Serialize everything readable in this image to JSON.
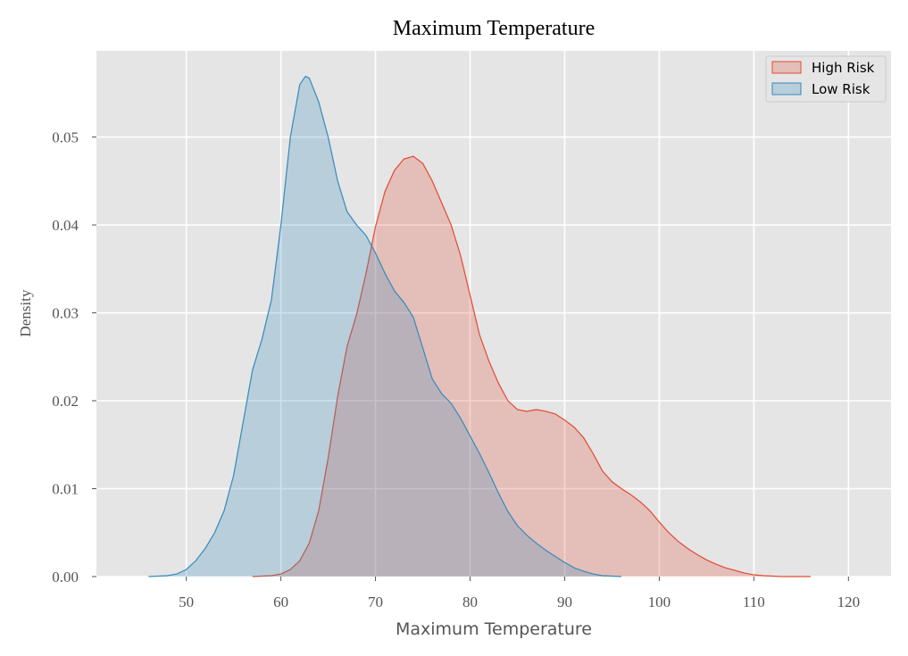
{
  "chart_data": {
    "type": "area",
    "title": "Maximum Temperature",
    "xlabel": "Maximum Temperature",
    "ylabel": "Density",
    "xlim": [
      40.5,
      124.5
    ],
    "ylim": [
      0,
      0.0598
    ],
    "xticks": [
      50,
      60,
      70,
      80,
      90,
      100,
      110,
      120
    ],
    "yticks": [
      0.0,
      0.01,
      0.02,
      0.03,
      0.04,
      0.05
    ],
    "ytick_labels": [
      "0.00",
      "0.01",
      "0.02",
      "0.03",
      "0.04",
      "0.05"
    ],
    "grid": true,
    "legend_position": "top-right",
    "series": [
      {
        "name": "High Risk",
        "color": "#e24a33",
        "points": [
          [
            57,
            0.0
          ],
          [
            59,
            0.0001
          ],
          [
            60,
            0.0003
          ],
          [
            61,
            0.0008
          ],
          [
            62,
            0.0018
          ],
          [
            63,
            0.0038
          ],
          [
            64,
            0.0075
          ],
          [
            65,
            0.0135
          ],
          [
            66,
            0.0205
          ],
          [
            67,
            0.0262
          ],
          [
            68,
            0.0298
          ],
          [
            69,
            0.0345
          ],
          [
            70,
            0.0398
          ],
          [
            71,
            0.0438
          ],
          [
            72,
            0.0462
          ],
          [
            73,
            0.0475
          ],
          [
            74,
            0.0478
          ],
          [
            75,
            0.047
          ],
          [
            76,
            0.045
          ],
          [
            77,
            0.0425
          ],
          [
            78,
            0.04
          ],
          [
            79,
            0.0365
          ],
          [
            80,
            0.032
          ],
          [
            81,
            0.0275
          ],
          [
            82,
            0.0245
          ],
          [
            83,
            0.022
          ],
          [
            84,
            0.02
          ],
          [
            85,
            0.019
          ],
          [
            86,
            0.0188
          ],
          [
            87,
            0.019
          ],
          [
            88,
            0.0188
          ],
          [
            89,
            0.0185
          ],
          [
            90,
            0.0178
          ],
          [
            91,
            0.017
          ],
          [
            92,
            0.0158
          ],
          [
            93,
            0.014
          ],
          [
            94,
            0.012
          ],
          [
            95,
            0.0108
          ],
          [
            96,
            0.01
          ],
          [
            97,
            0.0093
          ],
          [
            98,
            0.0085
          ],
          [
            99,
            0.0075
          ],
          [
            100,
            0.0062
          ],
          [
            101,
            0.005
          ],
          [
            102,
            0.004
          ],
          [
            103,
            0.0032
          ],
          [
            104,
            0.0025
          ],
          [
            105,
            0.0019
          ],
          [
            106,
            0.0014
          ],
          [
            107,
            0.001
          ],
          [
            108,
            0.0007
          ],
          [
            109,
            0.0004
          ],
          [
            110,
            0.0002
          ],
          [
            111,
            0.0001
          ],
          [
            113,
            0.0
          ],
          [
            116,
            0.0
          ]
        ]
      },
      {
        "name": "Low Risk",
        "color": "#348abd",
        "points": [
          [
            46,
            0.0
          ],
          [
            48,
            0.0001
          ],
          [
            49,
            0.0003
          ],
          [
            50,
            0.0008
          ],
          [
            51,
            0.0018
          ],
          [
            52,
            0.0032
          ],
          [
            53,
            0.005
          ],
          [
            54,
            0.0075
          ],
          [
            55,
            0.0115
          ],
          [
            56,
            0.0175
          ],
          [
            57,
            0.0235
          ],
          [
            58,
            0.027
          ],
          [
            59,
            0.0315
          ],
          [
            60,
            0.04
          ],
          [
            61,
            0.05
          ],
          [
            62,
            0.056
          ],
          [
            62.6,
            0.0569
          ],
          [
            63,
            0.0567
          ],
          [
            64,
            0.054
          ],
          [
            65,
            0.05
          ],
          [
            66,
            0.045
          ],
          [
            67,
            0.0415
          ],
          [
            68,
            0.04
          ],
          [
            69,
            0.0388
          ],
          [
            70,
            0.0368
          ],
          [
            71,
            0.0345
          ],
          [
            72,
            0.0325
          ],
          [
            73,
            0.0312
          ],
          [
            74,
            0.0295
          ],
          [
            75,
            0.026
          ],
          [
            76,
            0.0225
          ],
          [
            77,
            0.0208
          ],
          [
            78,
            0.0197
          ],
          [
            79,
            0.018
          ],
          [
            80,
            0.016
          ],
          [
            81,
            0.014
          ],
          [
            82,
            0.0118
          ],
          [
            83,
            0.0095
          ],
          [
            84,
            0.0074
          ],
          [
            85,
            0.0058
          ],
          [
            86,
            0.0047
          ],
          [
            87,
            0.0038
          ],
          [
            88,
            0.003
          ],
          [
            89,
            0.0023
          ],
          [
            90,
            0.0016
          ],
          [
            91,
            0.001
          ],
          [
            92,
            0.0006
          ],
          [
            93,
            0.0003
          ],
          [
            94,
            0.0001
          ],
          [
            96,
            0.0
          ]
        ]
      }
    ]
  }
}
